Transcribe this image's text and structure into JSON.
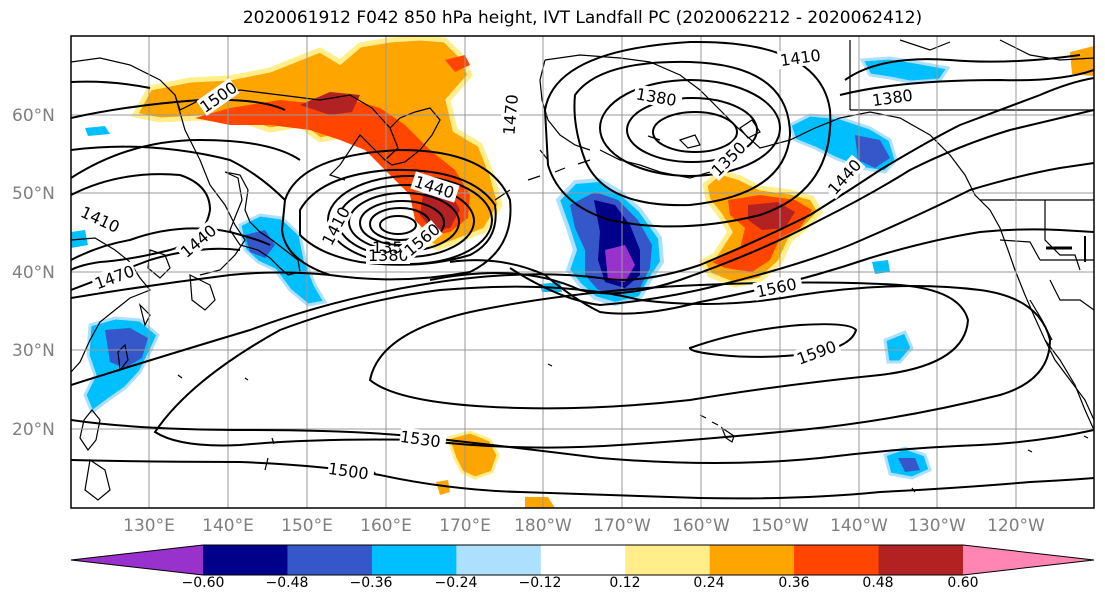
{
  "title": "2020061912 F042 850 hPa height, IVT Landfall PC (2020062212 - 2020062412)",
  "lat_labels": [
    "60°N",
    "50°N",
    "40°N",
    "30°N",
    "20°N"
  ],
  "lon_labels": [
    "130°E",
    "140°E",
    "150°E",
    "160°E",
    "170°E",
    "180°W",
    "170°W",
    "160°W",
    "150°W",
    "140°W",
    "130°W",
    "120°W"
  ],
  "contour_labels": [
    "1500",
    "1410",
    "1440",
    "1470",
    "1410",
    "1380",
    "1350",
    "1440",
    "1560",
    "1590",
    "1530",
    "1500",
    "1440",
    "1410",
    "1470",
    "1380",
    "1350",
    "1380",
    "1560"
  ],
  "colorbar": {
    "ticks": [
      "−0.60",
      "−0.48",
      "−0.36",
      "−0.24",
      "−0.12",
      "0.12",
      "0.24",
      "0.36",
      "0.48",
      "0.60"
    ],
    "colors": [
      "#9932CC",
      "#00008B",
      "#3557C9",
      "#00BFFF",
      "#ADDFFF",
      "#FFFFFF",
      "#FFEE8A",
      "#FFA500",
      "#FF4500",
      "#B22222",
      "#FF85B3"
    ]
  }
}
